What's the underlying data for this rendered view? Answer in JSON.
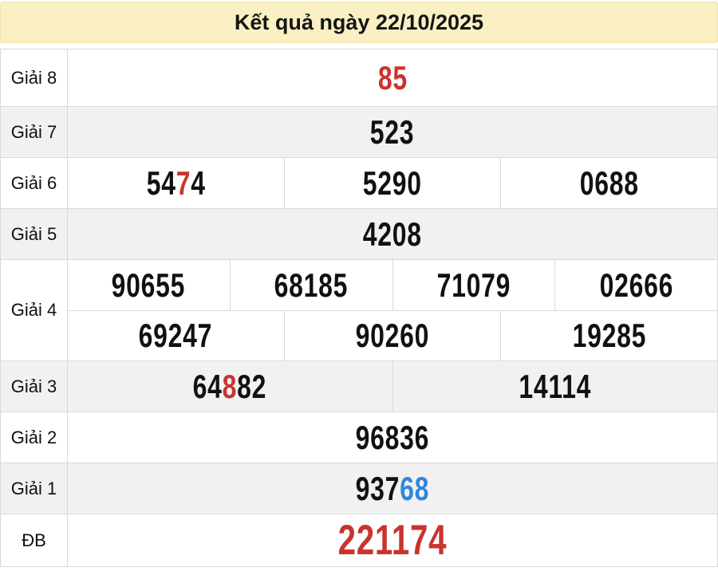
{
  "header": {
    "title": "Kết quả ngày 22/10/2025"
  },
  "colors": {
    "red": "#c9342f",
    "blue": "#2f86de",
    "default": "#111111",
    "header_bg": "#fbf0c3",
    "shaded_row_bg": "#f1f1f1",
    "border": "#d9d9d9"
  },
  "table": {
    "rows": [
      {
        "label": "Giải 8",
        "shaded": false,
        "size": "normal",
        "lines": [
          [
            {
              "segments": [
                {
                  "text": "85",
                  "color": "red"
                }
              ]
            }
          ]
        ]
      },
      {
        "label": "Giải 7",
        "shaded": true,
        "size": "normal",
        "lines": [
          [
            {
              "segments": [
                {
                  "text": "523"
                }
              ]
            }
          ]
        ]
      },
      {
        "label": "Giải 6",
        "shaded": false,
        "size": "normal",
        "lines": [
          [
            {
              "segments": [
                {
                  "text": "54"
                },
                {
                  "text": "7",
                  "color": "red"
                },
                {
                  "text": "4"
                }
              ]
            },
            {
              "segments": [
                {
                  "text": "5290"
                }
              ]
            },
            {
              "segments": [
                {
                  "text": "0688"
                }
              ]
            }
          ]
        ]
      },
      {
        "label": "Giải 5",
        "shaded": true,
        "size": "normal",
        "lines": [
          [
            {
              "segments": [
                {
                  "text": "4208"
                }
              ]
            }
          ]
        ]
      },
      {
        "label": "Giải 4",
        "shaded": false,
        "size": "normal",
        "lines": [
          [
            {
              "segments": [
                {
                  "text": "90655"
                }
              ]
            },
            {
              "segments": [
                {
                  "text": "68185"
                }
              ]
            },
            {
              "segments": [
                {
                  "text": "71079"
                }
              ]
            },
            {
              "segments": [
                {
                  "text": "02666"
                }
              ]
            }
          ],
          [
            {
              "segments": [
                {
                  "text": "69247"
                }
              ]
            },
            {
              "segments": [
                {
                  "text": "90260"
                }
              ]
            },
            {
              "segments": [
                {
                  "text": "19285"
                }
              ]
            }
          ]
        ]
      },
      {
        "label": "Giải 3",
        "shaded": true,
        "size": "normal",
        "lines": [
          [
            {
              "segments": [
                {
                  "text": "64"
                },
                {
                  "text": "8",
                  "color": "red"
                },
                {
                  "text": "82"
                }
              ]
            },
            {
              "segments": [
                {
                  "text": "14114"
                }
              ]
            }
          ]
        ]
      },
      {
        "label": "Giải 2",
        "shaded": false,
        "size": "normal",
        "lines": [
          [
            {
              "segments": [
                {
                  "text": "96836"
                }
              ]
            }
          ]
        ]
      },
      {
        "label": "Giải 1",
        "shaded": true,
        "size": "normal",
        "lines": [
          [
            {
              "segments": [
                {
                  "text": "937"
                },
                {
                  "text": "68",
                  "color": "blue"
                }
              ]
            }
          ]
        ]
      },
      {
        "label": "ĐB",
        "shaded": false,
        "size": "large",
        "lines": [
          [
            {
              "segments": [
                {
                  "text": "221174",
                  "color": "red"
                }
              ]
            }
          ]
        ]
      }
    ]
  }
}
